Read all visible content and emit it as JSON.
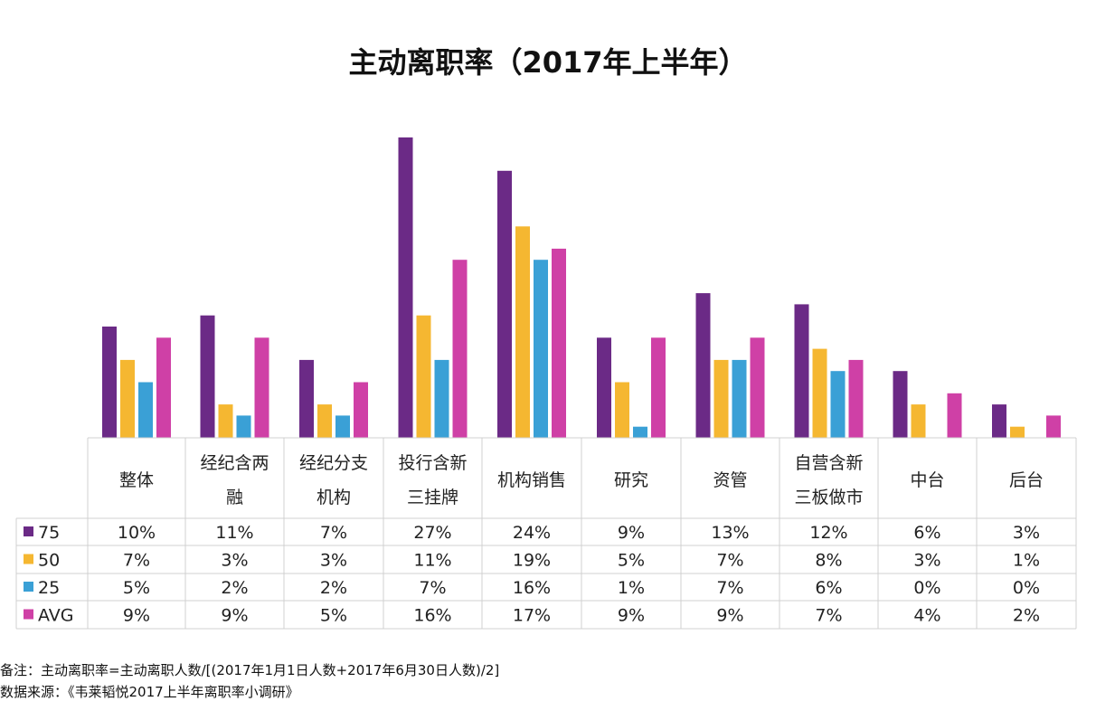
{
  "chart_data": {
    "type": "bar",
    "title": "主动离职率（2017年上半年）",
    "categories": [
      "整体",
      "经纪含两\n融",
      "经纪分支\n机构",
      "投行含新\n三挂牌",
      "机构销售",
      "研究",
      "资管",
      "自营含新\n三板做市",
      "中台",
      "后台"
    ],
    "series": [
      {
        "name": "75",
        "color": "#6b2a86",
        "values": [
          10,
          11,
          7,
          27,
          24,
          9,
          13,
          12,
          6,
          3
        ],
        "labels": [
          "10%",
          "11%",
          "7%",
          "27%",
          "24%",
          "9%",
          "13%",
          "12%",
          "6%",
          "3%"
        ]
      },
      {
        "name": "50",
        "color": "#f5b731",
        "values": [
          7,
          3,
          3,
          11,
          19,
          5,
          7,
          8,
          3,
          1
        ],
        "labels": [
          "7%",
          "3%",
          "3%",
          "11%",
          "19%",
          "5%",
          "7%",
          "8%",
          "3%",
          "1%"
        ]
      },
      {
        "name": "25",
        "color": "#3aa0d6",
        "values": [
          5,
          2,
          2,
          7,
          16,
          1,
          7,
          6,
          0,
          0
        ],
        "labels": [
          "5%",
          "2%",
          "2%",
          "7%",
          "16%",
          "1%",
          "7%",
          "6%",
          "0%",
          "0%"
        ]
      },
      {
        "name": "AVG",
        "color": "#cf40a6",
        "values": [
          9,
          9,
          5,
          16,
          17,
          9,
          9,
          7,
          4,
          2
        ],
        "labels": [
          "9%",
          "9%",
          "5%",
          "16%",
          "17%",
          "9%",
          "9%",
          "7%",
          "4%",
          "2%"
        ]
      }
    ],
    "ylim": [
      0,
      27
    ],
    "grid": false,
    "legend": "data-table"
  },
  "notes": {
    "note1": "备注：主动离职率=主动离职人数/[(2017年1月1日人数+2017年6月30日人数)/2]",
    "note2": "数据来源：《韦莱韬悦2017上半年离职率小调研》"
  }
}
